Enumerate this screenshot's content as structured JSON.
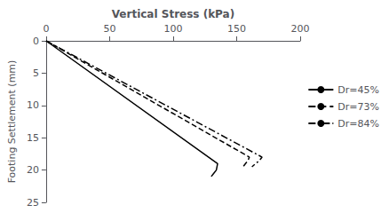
{
  "chart_data": {
    "type": "line",
    "xlabel": "Vertical Stress (kPa)",
    "ylabel": "Footing Settlement (mm)",
    "xlim": [
      0,
      200
    ],
    "ylim": [
      25,
      0
    ],
    "xticks": [
      0,
      50,
      100,
      150,
      200
    ],
    "yticks": [
      0,
      5,
      10,
      15,
      20,
      25
    ],
    "grid": false,
    "legend": "center right",
    "series": [
      {
        "name": "Dr=45%",
        "color": "black",
        "line_style": "solid",
        "x": [
          0,
          135,
          134,
          132,
          130
        ],
        "values": [
          0,
          19,
          20,
          20.5,
          21
        ]
      },
      {
        "name": "Dr=73%",
        "color": "black",
        "line_style": "dashed",
        "x": [
          0,
          160,
          159,
          157,
          155
        ],
        "values": [
          0,
          18,
          18.5,
          19.0,
          19.5
        ]
      },
      {
        "name": "Dr=84%",
        "color": "black",
        "line_style": "dashdot",
        "x": [
          0,
          170,
          168,
          165,
          162
        ],
        "values": [
          0,
          18,
          18.5,
          19.0,
          19.5
        ]
      }
    ]
  }
}
